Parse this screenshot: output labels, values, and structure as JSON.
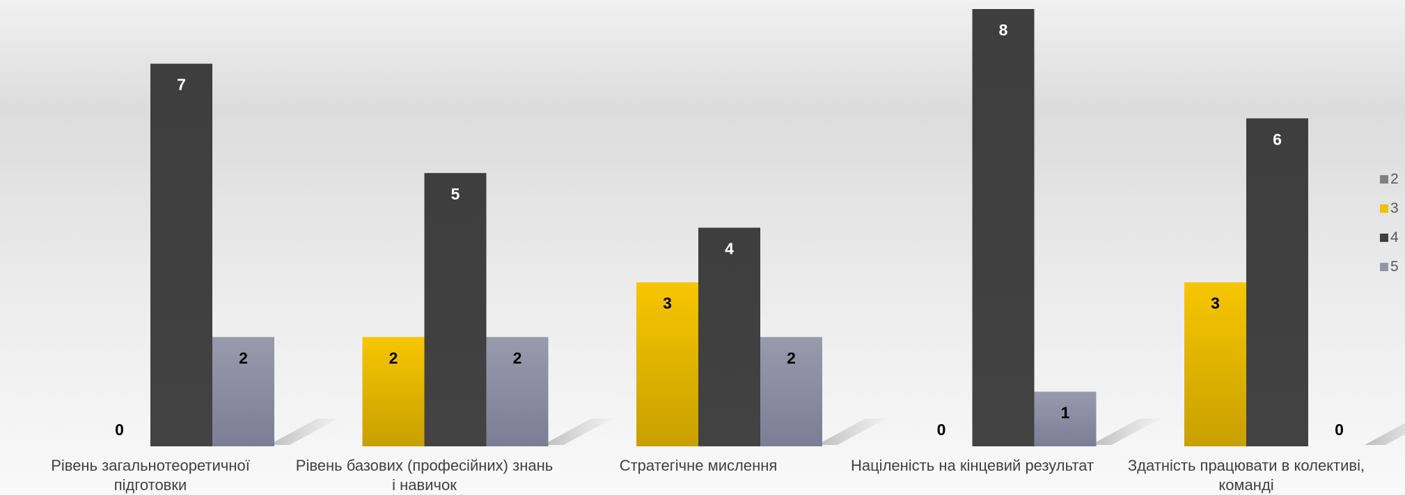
{
  "chart_data": {
    "type": "bar",
    "categories": [
      "Рівень загальнотеоретичної підготовки",
      "Рівень базових (професійних) знань і навичок",
      "Стратегічне мислення",
      "Націленість на кінцевий результат",
      "Здатність працювати в колективі, команді"
    ],
    "series": [
      {
        "name": "2",
        "values": [
          0,
          0,
          0,
          0,
          0
        ]
      },
      {
        "name": "3",
        "values": [
          0,
          2,
          3,
          0,
          3
        ]
      },
      {
        "name": "4",
        "values": [
          7,
          5,
          4,
          8,
          6
        ]
      },
      {
        "name": "5",
        "values": [
          2,
          2,
          2,
          1,
          0
        ]
      }
    ],
    "ylim": [
      0,
      8
    ],
    "legend": "right",
    "grid": false,
    "colors": {
      "2": "#808080",
      "3": "#f2c000",
      "4": "#404040",
      "5": "#9495aa"
    }
  }
}
